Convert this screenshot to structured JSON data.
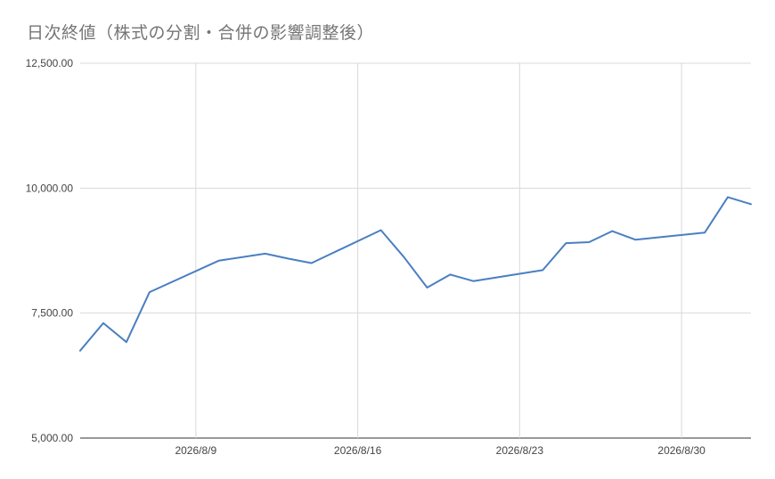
{
  "chart_data": {
    "type": "line",
    "title": "日次終値（株式の分割・合併の影響調整後）",
    "xlabel": "",
    "ylabel": "",
    "x_tick_labels": [
      {
        "date": "2026-08-09",
        "label": "2026/8/9"
      },
      {
        "date": "2026-08-16",
        "label": "2026/8/16"
      },
      {
        "date": "2026-08-23",
        "label": "2026/8/23"
      },
      {
        "date": "2026-08-30",
        "label": "2026/8/30"
      }
    ],
    "y_tick_labels": [
      {
        "value": 5000,
        "label": "5,000.00"
      },
      {
        "value": 7500,
        "label": "7,500.00"
      },
      {
        "value": 10000,
        "label": "10,000.00"
      },
      {
        "value": 12500,
        "label": "12,500.00"
      }
    ],
    "xlim": [
      "2026-08-04",
      "2026-09-02"
    ],
    "ylim": [
      5000,
      12500
    ],
    "grid": true,
    "line_color": "#4a7fc1",
    "grid_color": "#d9d9d9",
    "series": [
      {
        "x": [
          "2026-08-04",
          "2026-08-05",
          "2026-08-06",
          "2026-08-07",
          "2026-08-10",
          "2026-08-12",
          "2026-08-13",
          "2026-08-14",
          "2026-08-17",
          "2026-08-18",
          "2026-08-19",
          "2026-08-20",
          "2026-08-21",
          "2026-08-24",
          "2026-08-25",
          "2026-08-26",
          "2026-08-27",
          "2026-08-28",
          "2026-08-31",
          "2026-09-01",
          "2026-09-02"
        ],
        "y": [
          6750,
          7300,
          6920,
          7920,
          8550,
          8690,
          8590,
          8500,
          9160,
          8620,
          8010,
          8270,
          8140,
          8360,
          8900,
          8920,
          9140,
          8970,
          9110,
          9820,
          9680
        ]
      }
    ]
  }
}
